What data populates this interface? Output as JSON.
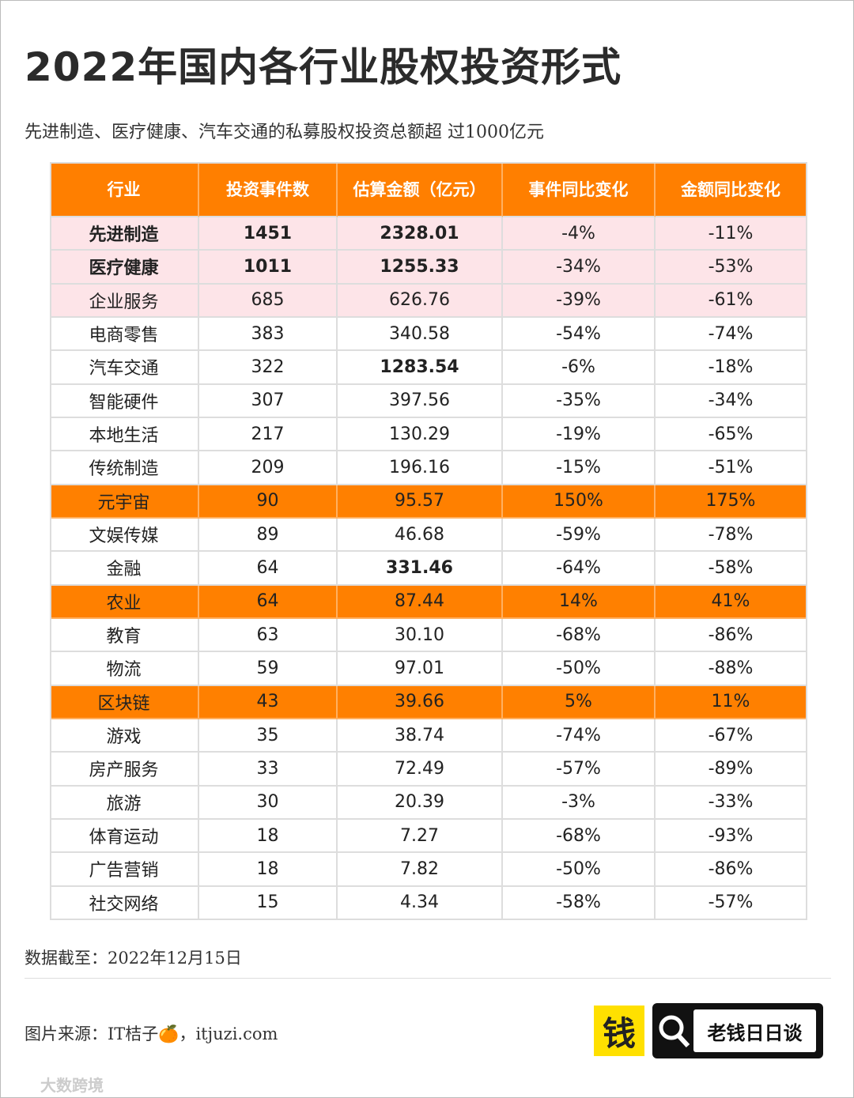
{
  "header": {
    "title": "2022年国内各行业股权投资形式",
    "subtitle": "先进制造、医疗健康、汽车交通的私募股权投资总额超 过1000亿元"
  },
  "table": {
    "header": [
      "行业",
      "投资事件数",
      "估算金额（亿元）",
      "事件同比变化",
      "金额同比变化"
    ],
    "rows": [
      [
        "先进制造",
        "1451",
        "2328.01",
        "-4%",
        "-11%"
      ],
      [
        "医疗健康",
        "1011",
        "1255.33",
        "-34%",
        "-53%"
      ],
      [
        "企业服务",
        "685",
        "626.76",
        "-39%",
        "-61%"
      ],
      [
        "电商零售",
        "383",
        "340.58",
        "-54%",
        "-74%"
      ],
      [
        "汽车交通",
        "322",
        "1283.54",
        "-6%",
        "-18%"
      ],
      [
        "智能硬件",
        "307",
        "397.56",
        "-35%",
        "-34%"
      ],
      [
        "本地生活",
        "217",
        "130.29",
        "-19%",
        "-65%"
      ],
      [
        "传统制造",
        "209",
        "196.16",
        "-15%",
        "-51%"
      ],
      [
        "元宇宙",
        "90",
        "95.57",
        "150%",
        "175%"
      ],
      [
        "文娱传媒",
        "89",
        "46.68",
        "-59%",
        "-78%"
      ],
      [
        "金融",
        "64",
        "331.46",
        "-64%",
        "-58%"
      ],
      [
        "农业",
        "64",
        "87.44",
        "14%",
        "41%"
      ],
      [
        "教育",
        "63",
        "30.10",
        "-68%",
        "-86%"
      ],
      [
        "物流",
        "59",
        "97.01",
        "-50%",
        "-88%"
      ],
      [
        "区块链",
        "43",
        "39.66",
        "5%",
        "11%"
      ],
      [
        "游戏",
        "35",
        "38.74",
        "-74%",
        "-67%"
      ],
      [
        "房产服务",
        "33",
        "72.49",
        "-57%",
        "-89%"
      ],
      [
        "旅游",
        "30",
        "20.39",
        "-3%",
        "-33%"
      ],
      [
        "体育运动",
        "18",
        "7.27",
        "-68%",
        "-93%"
      ],
      [
        "广告营销",
        "18",
        "7.82",
        "-50%",
        "-86%"
      ],
      [
        "社交网络",
        "15",
        "4.34",
        "-58%",
        "-57%"
      ]
    ]
  },
  "footer": {
    "date": "数据截至：2022年12月15日",
    "source": "图片来源：IT桔子🍊，itjuzi.com",
    "logo_icon": "钱",
    "logo_text": "老钱日日谈",
    "watermark": "大数跨境"
  }
}
